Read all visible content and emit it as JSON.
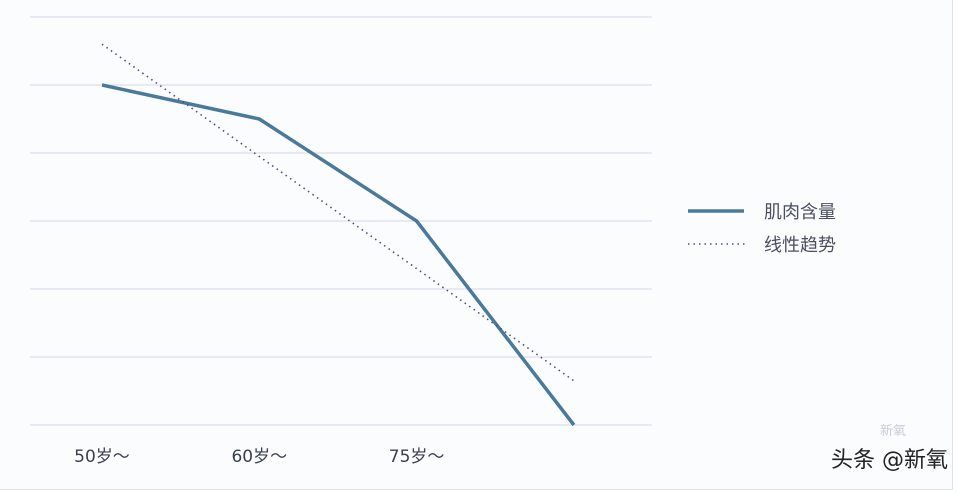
{
  "chart_data": {
    "type": "line",
    "title": "",
    "xlabel": "",
    "ylabel": "",
    "categories": [
      "50岁～",
      "60岁～",
      "75岁～",
      ""
    ],
    "ylim": [
      0,
      6
    ],
    "grid": true,
    "legend_placement": "right",
    "series": [
      {
        "name": "肌肉含量",
        "values": [
          5.0,
          4.5,
          3.0,
          0.0
        ],
        "color": "#4a7a99",
        "style": "solid"
      },
      {
        "name": "线性趋势",
        "values": [
          5.6,
          3.95,
          2.3,
          0.65
        ],
        "color": "#5a4a7a",
        "style": "dotted"
      }
    ]
  },
  "watermark": {
    "text": "头条 @新氧",
    "logo_text": "新氧"
  }
}
